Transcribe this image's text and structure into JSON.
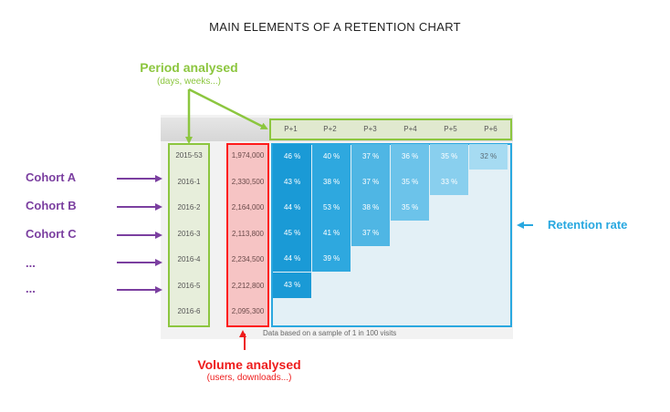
{
  "title": "MAIN ELEMENTS OF A RETENTION CHART",
  "period": {
    "label": "Period analysed",
    "sublabel": "(days, weeks...)"
  },
  "volume": {
    "label": "Volume analysed",
    "sublabel": "(users, downloads...)"
  },
  "retention_label": "Retention rate",
  "side_labels": [
    "Cohort A",
    "Cohort B",
    "Cohort C",
    "...",
    "..."
  ],
  "periods": [
    "P+1",
    "P+2",
    "P+3",
    "P+4",
    "P+5",
    "P+6"
  ],
  "rows": [
    {
      "cohort": "2015-53",
      "volume": "1,974,000",
      "rates": [
        "46 %",
        "40 %",
        "37 %",
        "36 %",
        "35 %",
        "32 %"
      ]
    },
    {
      "cohort": "2016-1",
      "volume": "2,330,500",
      "rates": [
        "43 %",
        "38 %",
        "37 %",
        "35 %",
        "33 %"
      ]
    },
    {
      "cohort": "2016-2",
      "volume": "2,164,000",
      "rates": [
        "44 %",
        "53 %",
        "38 %",
        "35 %"
      ]
    },
    {
      "cohort": "2016-3",
      "volume": "2,113,800",
      "rates": [
        "45 %",
        "41 %",
        "37 %"
      ]
    },
    {
      "cohort": "2016-4",
      "volume": "2,234,500",
      "rates": [
        "44 %",
        "39 %"
      ]
    },
    {
      "cohort": "2016-5",
      "volume": "2,212,800",
      "rates": [
        "43 %"
      ]
    },
    {
      "cohort": "2016-6",
      "volume": "2,095,300",
      "rates": []
    }
  ],
  "footnote": "Data based on a sample of 1 in 100 visits",
  "colors": {
    "period": "#8cc63f",
    "volume": "#ee1c1c",
    "retention": "#29a8e0",
    "cohort_arrows": "#7b3fa0"
  },
  "column_colors": [
    "#1a9ad6",
    "#2ea8df",
    "#4fb6e4",
    "#6cc3ea",
    "#89cfee",
    "#a6dbf2"
  ]
}
